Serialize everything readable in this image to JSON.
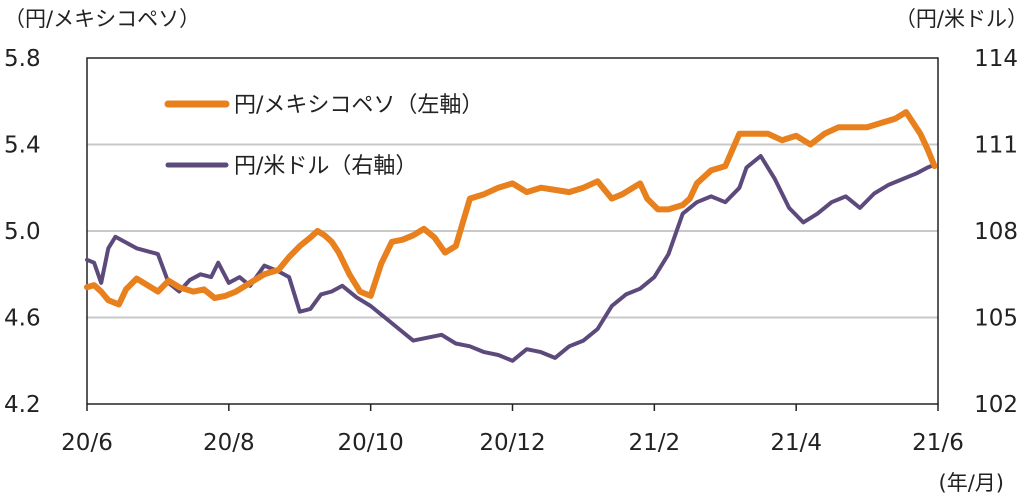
{
  "chart_data": {
    "type": "line",
    "left_axis_label": "（円/メキシコペソ）",
    "right_axis_label": "（円/米ドル）",
    "x_unit_label": "(年/月)",
    "x_ticks": [
      "20/6",
      "20/8",
      "20/10",
      "20/12",
      "21/2",
      "21/4",
      "21/6"
    ],
    "left_ticks": [
      "5.8",
      "5.4",
      "5.0",
      "4.6",
      "4.2"
    ],
    "right_ticks": [
      "114",
      "111",
      "108",
      "105",
      "102"
    ],
    "ylim_left": [
      4.2,
      5.8
    ],
    "ylim_right": [
      102,
      114
    ],
    "gridlines": "horizontal",
    "x_range_months": [
      0,
      12
    ],
    "series": [
      {
        "name": "円/メキシコペソ（左軸）",
        "axis": "left",
        "color": "#e8801e",
        "x": [
          0,
          0.1,
          0.2,
          0.3,
          0.45,
          0.55,
          0.7,
          0.85,
          1.0,
          1.15,
          1.3,
          1.5,
          1.65,
          1.8,
          1.95,
          2.1,
          2.3,
          2.5,
          2.7,
          2.85,
          3.0,
          3.15,
          3.25,
          3.35,
          3.45,
          3.55,
          3.7,
          3.85,
          4.0,
          4.15,
          4.3,
          4.45,
          4.6,
          4.7,
          4.75,
          4.9,
          5.05,
          5.2,
          5.4,
          5.6,
          5.8,
          6.0,
          6.2,
          6.4,
          6.6,
          6.8,
          7.0,
          7.2,
          7.4,
          7.55,
          7.7,
          7.8,
          7.9,
          8.05,
          8.2,
          8.4,
          8.5,
          8.6,
          8.8,
          9.0,
          9.2,
          9.4,
          9.6,
          9.8,
          10.0,
          10.2,
          10.4,
          10.6,
          10.8,
          11.0,
          11.2,
          11.4,
          11.55,
          11.65,
          11.75,
          11.85,
          11.95
        ],
        "values": [
          4.74,
          4.75,
          4.72,
          4.68,
          4.66,
          4.73,
          4.78,
          4.75,
          4.72,
          4.77,
          4.74,
          4.72,
          4.73,
          4.69,
          4.7,
          4.72,
          4.76,
          4.8,
          4.82,
          4.88,
          4.93,
          4.97,
          5.0,
          4.98,
          4.95,
          4.9,
          4.8,
          4.72,
          4.7,
          4.85,
          4.95,
          4.96,
          4.98,
          5.0,
          5.01,
          4.97,
          4.9,
          4.93,
          5.15,
          5.17,
          5.2,
          5.22,
          5.18,
          5.2,
          5.19,
          5.18,
          5.2,
          5.23,
          5.15,
          5.17,
          5.2,
          5.22,
          5.15,
          5.1,
          5.1,
          5.12,
          5.15,
          5.22,
          5.28,
          5.3,
          5.45,
          5.45,
          5.45,
          5.42,
          5.44,
          5.4,
          5.45,
          5.48,
          5.48,
          5.48,
          5.5,
          5.52,
          5.55,
          5.5,
          5.45,
          5.38,
          5.3
        ]
      },
      {
        "name": "円/米ドル（右軸）",
        "axis": "right",
        "color": "#5d4a7c",
        "x": [
          0,
          0.1,
          0.2,
          0.3,
          0.4,
          0.55,
          0.7,
          0.85,
          1.0,
          1.15,
          1.3,
          1.45,
          1.6,
          1.75,
          1.85,
          2.0,
          2.15,
          2.3,
          2.5,
          2.7,
          2.85,
          3.0,
          3.15,
          3.3,
          3.45,
          3.6,
          3.8,
          4.0,
          4.2,
          4.4,
          4.6,
          4.8,
          5.0,
          5.2,
          5.4,
          5.6,
          5.8,
          6.0,
          6.2,
          6.4,
          6.6,
          6.8,
          7.0,
          7.2,
          7.4,
          7.6,
          7.8,
          8.0,
          8.2,
          8.4,
          8.6,
          8.8,
          9.0,
          9.2,
          9.3,
          9.5,
          9.7,
          9.9,
          10.1,
          10.3,
          10.5,
          10.7,
          10.9,
          11.1,
          11.3,
          11.5,
          11.7,
          11.85,
          11.95
        ],
        "values": [
          107.0,
          106.9,
          106.2,
          107.4,
          107.8,
          107.6,
          107.4,
          107.3,
          107.2,
          106.2,
          105.9,
          106.3,
          106.5,
          106.4,
          106.9,
          106.2,
          106.4,
          106.1,
          106.8,
          106.6,
          106.4,
          105.2,
          105.3,
          105.8,
          105.9,
          106.1,
          105.7,
          105.4,
          105.0,
          104.6,
          104.2,
          104.3,
          104.4,
          104.1,
          104.0,
          103.8,
          103.7,
          103.5,
          103.9,
          103.8,
          103.6,
          104.0,
          104.2,
          104.6,
          105.4,
          105.8,
          106.0,
          106.4,
          107.2,
          108.6,
          109.0,
          109.2,
          109.0,
          109.5,
          110.2,
          110.6,
          109.8,
          108.8,
          108.3,
          108.6,
          109.0,
          109.2,
          108.8,
          109.3,
          109.6,
          109.8,
          110.0,
          110.2,
          110.3
        ]
      }
    ]
  }
}
